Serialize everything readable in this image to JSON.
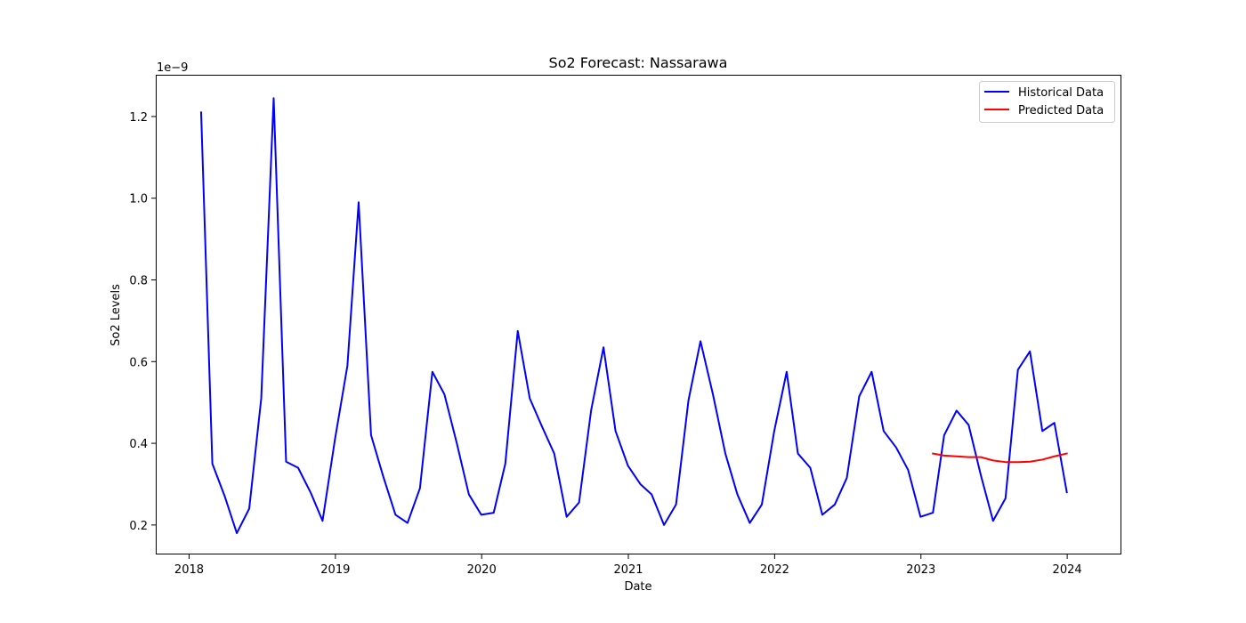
{
  "chart_data": {
    "type": "line",
    "title": "So2 Forecast: Nassarawa",
    "xlabel": "Date",
    "ylabel": "So2 Levels",
    "y_offset_label": "1e−9",
    "xlim": [
      "2017-10-12",
      "2024-05-13"
    ],
    "ylim": [
      0.13,
      1.3
    ],
    "x_ticks": [
      "2018",
      "2019",
      "2020",
      "2021",
      "2022",
      "2023",
      "2024"
    ],
    "y_ticks": [
      "0.2",
      "0.4",
      "0.6",
      "0.8",
      "1.0",
      "1.2"
    ],
    "legend_position": "top-right",
    "grid": false,
    "series": [
      {
        "name": "Historical Data",
        "color": "#0000ff",
        "x": [
          "2018-01-31",
          "2018-02-28",
          "2018-03-31",
          "2018-04-30",
          "2018-05-31",
          "2018-06-30",
          "2018-07-31",
          "2018-08-31",
          "2018-09-30",
          "2018-10-31",
          "2018-11-30",
          "2018-12-31",
          "2019-01-31",
          "2019-02-28",
          "2019-03-31",
          "2019-04-30",
          "2019-05-31",
          "2019-06-30",
          "2019-07-31",
          "2019-08-31",
          "2019-09-30",
          "2019-10-31",
          "2019-11-30",
          "2019-12-31",
          "2020-01-31",
          "2020-02-29",
          "2020-03-31",
          "2020-04-30",
          "2020-05-31",
          "2020-06-30",
          "2020-07-31",
          "2020-08-31",
          "2020-09-30",
          "2020-10-31",
          "2020-11-30",
          "2020-12-31",
          "2021-01-31",
          "2021-02-28",
          "2021-03-31",
          "2021-04-30",
          "2021-05-31",
          "2021-06-30",
          "2021-07-31",
          "2021-08-31",
          "2021-09-30",
          "2021-10-31",
          "2021-11-30",
          "2021-12-31",
          "2022-01-31",
          "2022-02-28",
          "2022-03-31",
          "2022-04-30",
          "2022-05-31",
          "2022-06-30",
          "2022-07-31",
          "2022-08-31",
          "2022-09-30",
          "2022-10-31",
          "2022-11-30",
          "2022-12-31",
          "2023-01-31",
          "2023-02-28",
          "2023-03-31",
          "2023-04-30",
          "2023-05-31",
          "2023-06-30",
          "2023-07-31",
          "2023-08-31",
          "2023-09-30",
          "2023-10-31",
          "2023-11-30",
          "2023-12-31"
        ],
        "y": [
          1.21,
          0.35,
          0.27,
          0.18,
          0.24,
          0.51,
          1.245,
          0.355,
          0.34,
          0.28,
          0.21,
          0.41,
          0.59,
          0.99,
          0.42,
          0.32,
          0.225,
          0.205,
          0.29,
          0.575,
          0.52,
          0.4,
          0.275,
          0.225,
          0.23,
          0.35,
          0.675,
          0.51,
          0.44,
          0.375,
          0.22,
          0.255,
          0.48,
          0.635,
          0.43,
          0.345,
          0.3,
          0.275,
          0.2,
          0.25,
          0.505,
          0.65,
          0.52,
          0.375,
          0.275,
          0.205,
          0.25,
          0.43,
          0.575,
          0.375,
          0.34,
          0.225,
          0.25,
          0.315,
          0.515,
          0.575,
          0.43,
          0.39,
          0.335,
          0.22,
          0.23,
          0.42,
          0.48,
          0.445,
          0.32,
          0.21,
          0.265,
          0.58,
          0.625,
          0.43,
          0.45,
          0.28
        ]
      },
      {
        "name": "Predicted Data",
        "color": "#ff0000",
        "x": [
          "2023-01-31",
          "2023-02-28",
          "2023-03-31",
          "2023-04-30",
          "2023-05-31",
          "2023-06-30",
          "2023-07-31",
          "2023-08-31",
          "2023-09-30",
          "2023-10-31",
          "2023-11-30",
          "2023-12-31"
        ],
        "y": [
          0.375,
          0.37,
          0.368,
          0.366,
          0.366,
          0.358,
          0.354,
          0.354,
          0.355,
          0.36,
          0.368,
          0.375
        ]
      }
    ]
  }
}
